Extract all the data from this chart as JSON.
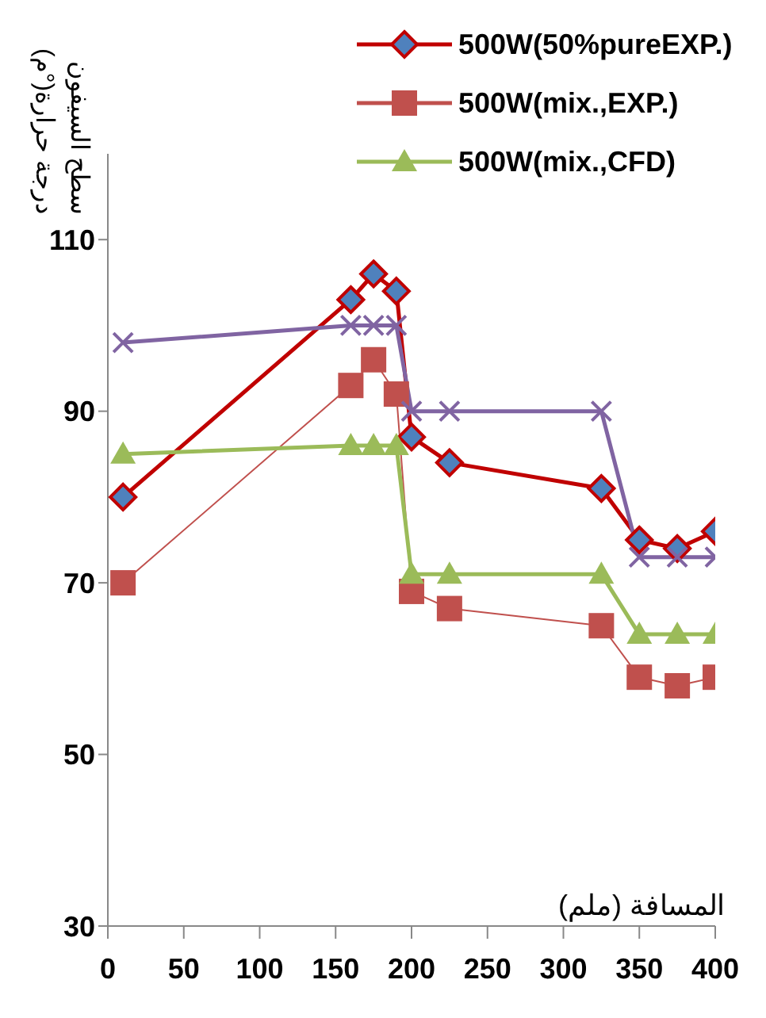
{
  "chart_data": {
    "type": "line",
    "xlabel": "المسافة (ملم)",
    "ylabel": "درجة حرارة(°م)\nسطح السيفون",
    "x": [
      10,
      160,
      175,
      190,
      200,
      225,
      325,
      350,
      375,
      400
    ],
    "series": [
      {
        "name": "500W(50%pureEXP.)",
        "color": "#c00000",
        "marker": "diamond",
        "values": [
          80,
          103,
          106,
          104,
          87,
          84,
          81,
          75,
          74,
          76
        ]
      },
      {
        "name": "500W(mix.,EXP.)",
        "color": "#c0504d",
        "marker": "square",
        "values": [
          70,
          93,
          96,
          92,
          69,
          67,
          65,
          59,
          58,
          59
        ]
      },
      {
        "name": "500W(mix.,CFD)",
        "color": "#9bbb59",
        "marker": "triangle",
        "values": [
          85,
          86,
          86,
          86,
          71,
          71,
          71,
          64,
          64,
          64
        ]
      },
      {
        "color": "#8064a2",
        "marker": "cross",
        "values": [
          98,
          100,
          100,
          100,
          90,
          90,
          90,
          73,
          73,
          73
        ]
      }
    ],
    "xlim": [
      0,
      400
    ],
    "xticks": [
      0,
      50,
      100,
      150,
      200,
      250,
      300,
      350,
      400
    ],
    "ylim": [
      30,
      120
    ],
    "yticks": [
      30,
      50,
      70,
      90,
      110
    ],
    "grid": false,
    "legend": "top right"
  }
}
